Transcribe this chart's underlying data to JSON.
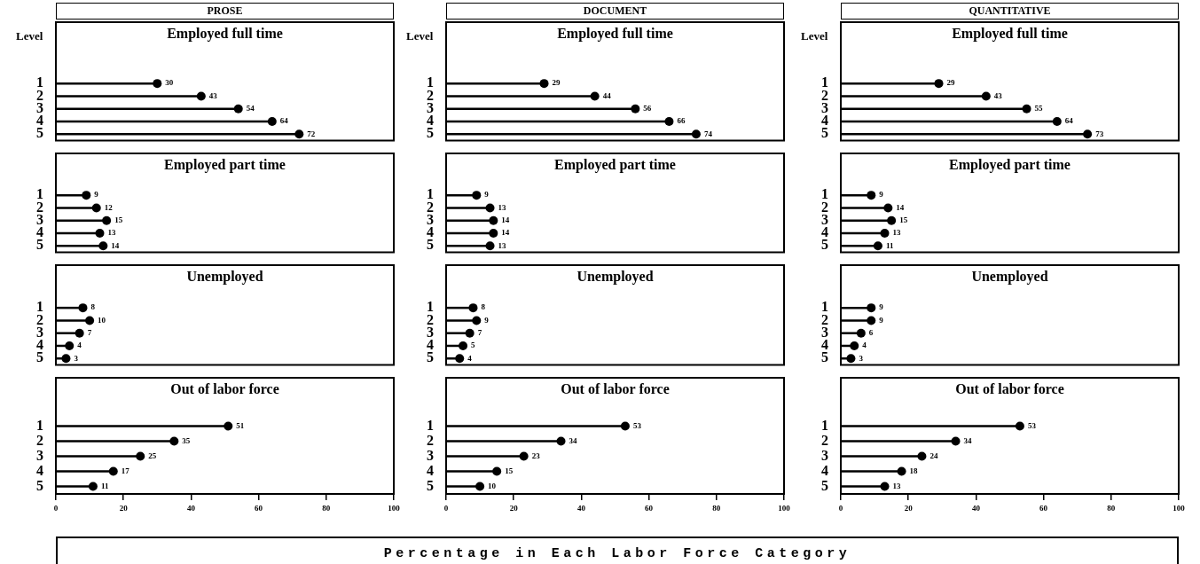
{
  "chart_data": [
    {
      "type": "lollipop",
      "title": "PROSE",
      "subtitle": "Employed full time",
      "ylabel": "Level",
      "categories": [
        "1",
        "2",
        "3",
        "4",
        "5"
      ],
      "values": [
        30,
        43,
        54,
        64,
        72
      ],
      "color": "#000000",
      "orientation": "horizontal",
      "xlim": [
        0,
        100
      ],
      "xticks": [
        0,
        20,
        40,
        60,
        80,
        100
      ],
      "data_labels": true,
      "marker": "circle",
      "tick_labels": "y"
    },
    {
      "type": "lollipop",
      "title": "DOCUMENT",
      "subtitle": "Employed full time",
      "ylabel": "Level",
      "categories": [
        "1",
        "2",
        "3",
        "4",
        "5"
      ],
      "values": [
        29,
        44,
        56,
        66,
        74
      ],
      "color": "#000000",
      "orientation": "horizontal",
      "xlim": [
        0,
        100
      ],
      "xticks": [
        0,
        20,
        40,
        60,
        80,
        100
      ],
      "data_labels": true,
      "marker": "circle",
      "tick_labels": "y"
    },
    {
      "type": "lollipop",
      "title": "QUANTITATIVE",
      "subtitle": "Employed full time",
      "ylabel": "Level",
      "categories": [
        "1",
        "2",
        "3",
        "4",
        "5"
      ],
      "values": [
        29,
        43,
        55,
        64,
        73
      ],
      "color": "#000000",
      "orientation": "horizontal",
      "xlim": [
        0,
        100
      ],
      "xticks": [
        0,
        20,
        40,
        60,
        80,
        100
      ],
      "data_labels": true,
      "marker": "circle",
      "tick_labels": "y"
    },
    {
      "type": "lollipop",
      "title": "Employed part time",
      "categories": [
        "1",
        "2",
        "3",
        "4",
        "5"
      ],
      "values": [
        9,
        12,
        15,
        13,
        14
      ],
      "color": "#000000",
      "orientation": "horizontal",
      "xlim": [
        0,
        100
      ],
      "xticks": [
        0,
        20,
        40,
        60,
        80,
        100
      ],
      "data_labels": true,
      "marker": "circle",
      "tick_labels": "y"
    },
    {
      "type": "lollipop",
      "title": "Employed part time",
      "categories": [
        "1",
        "2",
        "3",
        "4",
        "5"
      ],
      "values": [
        9,
        13,
        14,
        14,
        13
      ],
      "color": "#000000",
      "orientation": "horizontal",
      "xlim": [
        0,
        100
      ],
      "xticks": [
        0,
        20,
        40,
        60,
        80,
        100
      ],
      "data_labels": true,
      "marker": "circle",
      "tick_labels": "y"
    },
    {
      "type": "lollipop",
      "title": "Employed part time",
      "categories": [
        "1",
        "2",
        "3",
        "4",
        "5"
      ],
      "values": [
        9,
        14,
        15,
        13,
        11
      ],
      "color": "#000000",
      "orientation": "horizontal",
      "xlim": [
        0,
        100
      ],
      "xticks": [
        0,
        20,
        40,
        60,
        80,
        100
      ],
      "data_labels": true,
      "marker": "circle",
      "tick_labels": "y"
    },
    {
      "type": "lollipop",
      "title": "Unemployed",
      "categories": [
        "1",
        "2",
        "3",
        "4",
        "5"
      ],
      "values": [
        8,
        10,
        7,
        4,
        3
      ],
      "color": "#000000",
      "orientation": "horizontal",
      "xlim": [
        0,
        100
      ],
      "xticks": [
        0,
        20,
        40,
        60,
        80,
        100
      ],
      "data_labels": true,
      "marker": "circle",
      "tick_labels": "y"
    },
    {
      "type": "lollipop",
      "title": "Unemployed",
      "categories": [
        "1",
        "2",
        "3",
        "4",
        "5"
      ],
      "values": [
        8,
        9,
        7,
        5,
        4
      ],
      "color": "#000000",
      "orientation": "horizontal",
      "xlim": [
        0,
        100
      ],
      "xticks": [
        0,
        20,
        40,
        60,
        80,
        100
      ],
      "data_labels": true,
      "marker": "circle",
      "tick_labels": "y"
    },
    {
      "type": "lollipop",
      "title": "Unemployed",
      "categories": [
        "1",
        "2",
        "3",
        "4",
        "5"
      ],
      "values": [
        9,
        9,
        6,
        4,
        3
      ],
      "color": "#000000",
      "orientation": "horizontal",
      "xlim": [
        0,
        100
      ],
      "xticks": [
        0,
        20,
        40,
        60,
        80,
        100
      ],
      "data_labels": true,
      "marker": "circle",
      "tick_labels": "y"
    },
    {
      "type": "lollipop",
      "title": "Out of labor force",
      "categories": [
        "1",
        "2",
        "3",
        "4",
        "5"
      ],
      "values": [
        51,
        35,
        25,
        17,
        11
      ],
      "color": "#000000",
      "orientation": "horizontal",
      "xlim": [
        0,
        100
      ],
      "xticks": [
        0,
        20,
        40,
        60,
        80,
        100
      ],
      "data_labels": true,
      "marker": "circle"
    },
    {
      "type": "lollipop",
      "title": "Out of labor force",
      "xlabel": "Percentage in Each Labor Force Category",
      "categories": [
        "1",
        "2",
        "3",
        "4",
        "5"
      ],
      "values": [
        53,
        34,
        23,
        15,
        10
      ],
      "color": "#000000",
      "orientation": "horizontal",
      "xlim": [
        0,
        100
      ],
      "xticks": [
        0,
        20,
        40,
        60,
        80,
        100
      ],
      "data_labels": true,
      "marker": "circle"
    },
    {
      "type": "lollipop",
      "title": "Out of labor force",
      "categories": [
        "1",
        "2",
        "3",
        "4",
        "5"
      ],
      "values": [
        53,
        34,
        24,
        18,
        13
      ],
      "color": "#000000",
      "orientation": "horizontal",
      "xlim": [
        0,
        100
      ],
      "xticks": [
        0,
        20,
        40,
        60,
        80,
        100
      ],
      "data_labels": true,
      "marker": "circle"
    }
  ]
}
